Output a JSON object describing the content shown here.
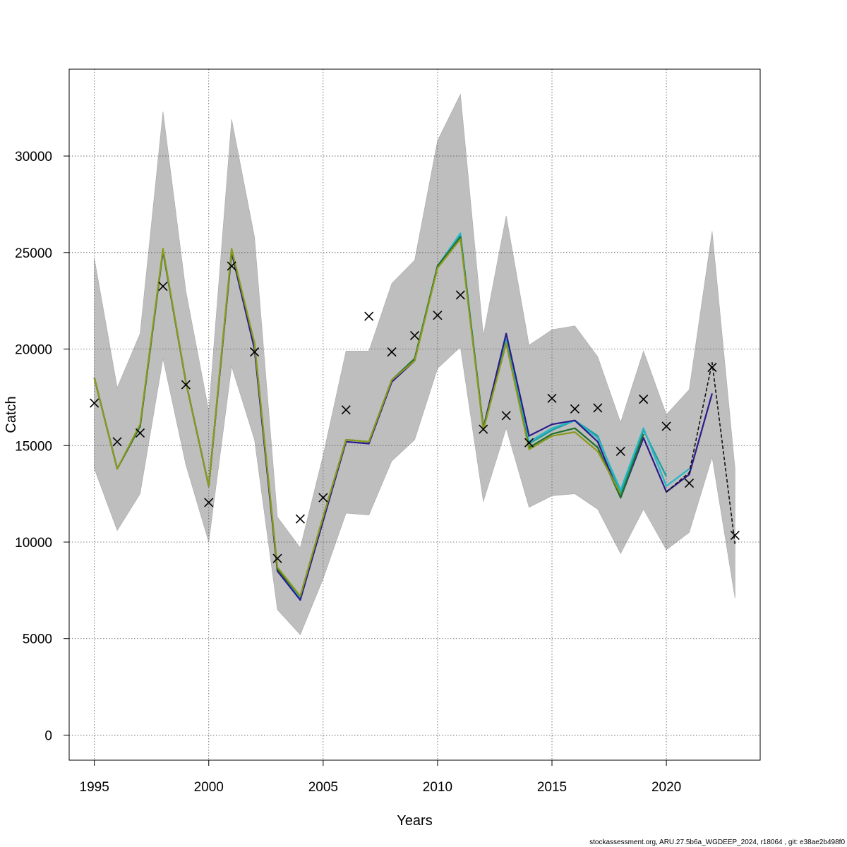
{
  "chart_data": {
    "type": "line",
    "xlabel": "Years",
    "ylabel": "Catch",
    "xlim": [
      1993.9,
      2024.1
    ],
    "ylim": [
      -1300,
      34500
    ],
    "x_ticks": [
      1995,
      2000,
      2005,
      2010,
      2015,
      2020
    ],
    "y_ticks": [
      0,
      5000,
      10000,
      15000,
      20000,
      25000,
      30000
    ],
    "grid": true,
    "legend": "none",
    "footer": "stockassessment.org, ARU.27.5b6a_WGDEEP_2024, r18064 , git: e38ae2b498f0",
    "confidence_band": {
      "color": "#bebebe",
      "x": [
        1995,
        1996,
        1997,
        1998,
        1999,
        2000,
        2001,
        2002,
        2003,
        2004,
        2005,
        2006,
        2007,
        2008,
        2009,
        2010,
        2011,
        2012,
        2013,
        2014,
        2015,
        2016,
        2017,
        2018,
        2019,
        2020,
        2021,
        2022,
        2023
      ],
      "lower": [
        13800,
        10600,
        12500,
        19500,
        14000,
        10000,
        19100,
        15300,
        6500,
        5200,
        8100,
        11500,
        11400,
        14200,
        15300,
        19000,
        20100,
        12100,
        15900,
        11800,
        12400,
        12500,
        11700,
        9400,
        11700,
        9600,
        10500,
        14400,
        7100
      ],
      "upper": [
        24700,
        18000,
        20800,
        32300,
        23000,
        16800,
        31900,
        25800,
        11300,
        9700,
        14500,
        19900,
        19900,
        23400,
        24600,
        30800,
        33200,
        20700,
        26900,
        20200,
        21000,
        21200,
        19600,
        16200,
        19900,
        16600,
        17900,
        26100,
        13800
      ]
    },
    "series": [
      {
        "color": "#1b9e9e",
        "x": [
          1995,
          1996,
          1997,
          1998,
          1999,
          2000,
          2001,
          2002,
          2003,
          2004,
          2005,
          2006,
          2007,
          2008,
          2009,
          2010,
          2011,
          2012,
          2013,
          2014,
          2015,
          2016,
          2017,
          2018,
          2019,
          2020
        ],
        "values": [
          18500,
          13800,
          16000,
          25100,
          18300,
          12900,
          25100,
          20200,
          8600,
          7100,
          11200,
          15300,
          15200,
          18400,
          19500,
          24300,
          25900,
          15900,
          20500,
          15100,
          15800,
          16300,
          15500,
          12500,
          15800,
          13400
        ]
      },
      {
        "color": "#26b8c4",
        "x": [
          1995,
          1996,
          1997,
          1998,
          1999,
          2000,
          2001,
          2002,
          2003,
          2004,
          2005,
          2006,
          2007,
          2008,
          2009,
          2010,
          2011,
          2012,
          2013,
          2014,
          2015,
          2016,
          2017,
          2018,
          2019,
          2020,
          2021
        ],
        "values": [
          18500,
          13800,
          16000,
          25100,
          18300,
          12900,
          25100,
          20200,
          8600,
          7100,
          11200,
          15300,
          15200,
          18400,
          19500,
          24300,
          26000,
          15900,
          20400,
          15200,
          15900,
          16300,
          15400,
          12700,
          15900,
          12900,
          13800
        ]
      },
      {
        "color": "#2b1a8c",
        "x": [
          1995,
          1996,
          1997,
          1998,
          1999,
          2000,
          2001,
          2002,
          2003,
          2004,
          2005,
          2006,
          2007,
          2008,
          2009,
          2010,
          2011,
          2012,
          2013,
          2014,
          2015,
          2016,
          2017,
          2018,
          2019,
          2020,
          2021,
          2022
        ],
        "values": [
          18500,
          13800,
          16000,
          25100,
          18300,
          12900,
          25000,
          20000,
          8500,
          7000,
          11100,
          15200,
          15100,
          18300,
          19400,
          24300,
          25800,
          15900,
          20800,
          15500,
          16100,
          16300,
          15200,
          12300,
          15400,
          12600,
          13500,
          17700
        ]
      },
      {
        "color": "#1f6f2a",
        "x": [
          1995,
          1996,
          1997,
          1998,
          1999,
          2000,
          2001,
          2002,
          2003,
          2004,
          2005,
          2006,
          2007,
          2008,
          2009,
          2010,
          2011,
          2012,
          2013,
          2014,
          2015,
          2016,
          2017,
          2018,
          2019
        ],
        "values": [
          18500,
          13800,
          16000,
          25100,
          18300,
          12900,
          25100,
          20300,
          8600,
          7200,
          11300,
          15300,
          15200,
          18400,
          19500,
          24300,
          25800,
          15900,
          20300,
          14900,
          15600,
          15900,
          14900,
          12300,
          15600
        ]
      },
      {
        "color": "#8c9a1b",
        "x": [
          1995,
          1996,
          1997,
          1998,
          1999,
          2000,
          2001,
          2002,
          2003,
          2004,
          2005,
          2006,
          2007,
          2008,
          2009,
          2010,
          2011,
          2012,
          2013,
          2014,
          2015,
          2016,
          2017,
          2018
        ],
        "values": [
          18500,
          13800,
          16100,
          25200,
          18300,
          12900,
          25200,
          20300,
          8700,
          7200,
          11300,
          15300,
          15200,
          18400,
          19400,
          24200,
          25700,
          15800,
          20300,
          14800,
          15500,
          15700,
          14700,
          12500
        ]
      },
      {
        "color": "#111111",
        "dashed": true,
        "x": [
          2020,
          2021,
          2022,
          2023
        ],
        "values": [
          12600,
          13600,
          19300,
          9900
        ]
      }
    ],
    "observed": {
      "marker": "x",
      "x": [
        1995,
        1996,
        1997,
        1998,
        1999,
        2000,
        2001,
        2002,
        2003,
        2004,
        2005,
        2006,
        2007,
        2008,
        2009,
        2010,
        2011,
        2012,
        2013,
        2014,
        2015,
        2016,
        2017,
        2018,
        2019,
        2020,
        2021,
        2022,
        2023
      ],
      "values": [
        17200,
        15200,
        15650,
        23250,
        18150,
        12050,
        24300,
        19850,
        9150,
        11200,
        12300,
        16850,
        21700,
        19850,
        20700,
        21750,
        22800,
        15850,
        16550,
        15150,
        17450,
        16900,
        16950,
        14700,
        17400,
        16000,
        13050,
        19050,
        10350
      ]
    }
  }
}
